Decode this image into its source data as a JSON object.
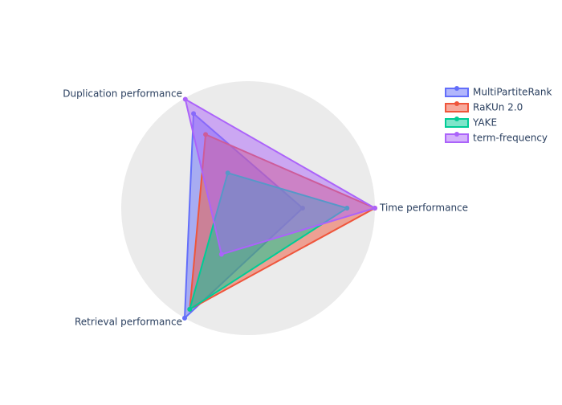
{
  "chart_data": {
    "type": "radar",
    "categories": [
      "Time performance",
      "Duplication performance",
      "Retrieval performance"
    ],
    "series": [
      {
        "name": "MultiPartiteRank",
        "color": "#636efa",
        "values": [
          0.43,
          0.86,
          1.0
        ]
      },
      {
        "name": "RaKUn 2.0",
        "color": "#ef553b",
        "values": [
          1.0,
          0.67,
          0.92
        ]
      },
      {
        "name": "YAKE",
        "color": "#00cc96",
        "values": [
          0.78,
          0.32,
          0.92
        ]
      },
      {
        "name": "term-frequency",
        "color": "#ab63fa",
        "values": [
          1.0,
          0.99,
          0.42
        ]
      }
    ],
    "rlim": [
      0,
      1
    ]
  }
}
